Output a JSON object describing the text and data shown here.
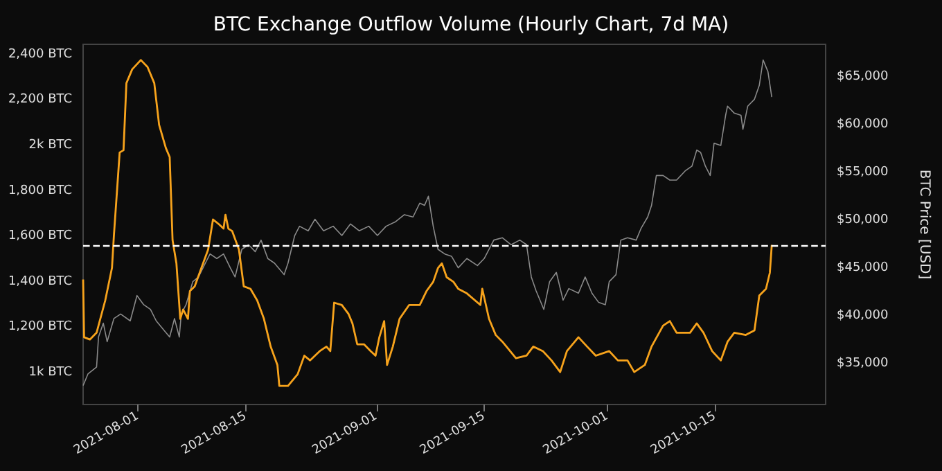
{
  "chart_data": {
    "type": "line",
    "title": "BTC Exchange Outflow Volume (Hourly Chart, 7d MA)",
    "y2label": "BTC Price [USD]",
    "marker": "none",
    "xlim": [
      "2021-07-24T21:00",
      "2021-10-29T09:00"
    ],
    "xticks": [
      {
        "value": "2021-08-01",
        "label": "2021-08-01"
      },
      {
        "value": "2021-08-15",
        "label": "2021-08-15"
      },
      {
        "value": "2021-09-01",
        "label": "2021-09-01"
      },
      {
        "value": "2021-09-15",
        "label": "2021-09-15"
      },
      {
        "value": "2021-10-01",
        "label": "2021-10-01"
      },
      {
        "value": "2021-10-15",
        "label": "2021-10-15"
      }
    ],
    "ylim": [
      860,
      2445
    ],
    "yticks": [
      {
        "value": 1000,
        "label": "1k BTC"
      },
      {
        "value": 1200,
        "label": "1,200 BTC"
      },
      {
        "value": 1400,
        "label": "1,400 BTC"
      },
      {
        "value": 1600,
        "label": "1,600 BTC"
      },
      {
        "value": 1800,
        "label": "1,800 BTC"
      },
      {
        "value": 2000,
        "label": "2k BTC"
      },
      {
        "value": 2200,
        "label": "2,200 BTC"
      },
      {
        "value": 2400,
        "label": "2,400 BTC"
      }
    ],
    "y2lim": [
      30750,
      68430
    ],
    "y2ticks": [
      {
        "value": 35000,
        "label": "$35,000"
      },
      {
        "value": 40000,
        "label": "$40,000"
      },
      {
        "value": 45000,
        "label": "$45,000"
      },
      {
        "value": 50000,
        "label": "$50,000"
      },
      {
        "value": 55000,
        "label": "$55,000"
      },
      {
        "value": 60000,
        "label": "$60,000"
      },
      {
        "value": 65000,
        "label": "$65,000"
      }
    ],
    "ref_lines": [
      {
        "axis": "y",
        "value": 1560,
        "color": "#ffffff",
        "line_style": "dashed"
      }
    ],
    "series": [
      {
        "color": "#8a8a8a",
        "axis": "y2",
        "x": [
          "2021-07-24T21:00",
          "2021-07-25T12:00",
          "2021-07-26T15:00",
          "2021-07-26T21:00",
          "2021-07-27T12:00",
          "2021-07-28T00:00",
          "2021-07-28T21:00",
          "2021-07-29T18:00",
          "2021-07-31T00:00",
          "2021-07-31T21:00",
          "2021-08-01T18:00",
          "2021-08-02T15:00",
          "2021-08-03T09:00",
          "2021-08-04T15:00",
          "2021-08-05T03:00",
          "2021-08-05T18:00",
          "2021-08-06T09:00",
          "2021-08-06T15:00",
          "2021-08-07T06:00",
          "2021-08-08T03:00",
          "2021-08-08T21:00",
          "2021-08-09T18:00",
          "2021-08-10T09:00",
          "2021-08-11T06:00",
          "2021-08-12T03:00",
          "2021-08-13T00:00",
          "2021-08-13T15:00",
          "2021-08-14T12:00",
          "2021-08-15T09:00",
          "2021-08-16T06:00",
          "2021-08-17T00:00",
          "2021-08-17T21:00",
          "2021-08-18T18:00",
          "2021-08-20T00:00",
          "2021-08-20T12:00",
          "2021-08-21T09:00",
          "2021-08-22T00:00",
          "2021-08-23T03:00",
          "2021-08-24T00:00",
          "2021-08-25T03:00",
          "2021-08-26T09:00",
          "2021-08-27T12:00",
          "2021-08-28T15:00",
          "2021-08-29T18:00",
          "2021-08-31T00:00",
          "2021-09-01T03:00",
          "2021-09-02T06:00",
          "2021-09-03T12:00",
          "2021-09-04T15:00",
          "2021-09-05T18:00",
          "2021-09-06T15:00",
          "2021-09-07T06:00",
          "2021-09-07T18:00",
          "2021-09-08T09:00",
          "2021-09-09T00:00",
          "2021-09-09T21:00",
          "2021-09-10T18:00",
          "2021-09-11T15:00",
          "2021-09-12T18:00",
          "2021-09-14T03:00",
          "2021-09-15T00:00",
          "2021-09-16T06:00",
          "2021-09-17T09:00",
          "2021-09-18T12:00",
          "2021-09-19T15:00",
          "2021-09-20T12:00",
          "2021-09-21T03:00",
          "2021-09-21T18:00",
          "2021-09-22T06:00",
          "2021-09-22T18:00",
          "2021-09-23T12:00",
          "2021-09-24T09:00",
          "2021-09-25T06:00",
          "2021-09-26T00:00",
          "2021-09-27T06:00",
          "2021-09-28T03:00",
          "2021-09-29T00:00",
          "2021-09-29T21:00",
          "2021-09-30T18:00",
          "2021-10-01T06:00",
          "2021-10-02T03:00",
          "2021-10-02T18:00",
          "2021-10-03T15:00",
          "2021-10-04T18:00",
          "2021-10-05T09:00",
          "2021-10-06T06:00",
          "2021-10-06T18:00",
          "2021-10-07T09:00",
          "2021-10-08T06:00",
          "2021-10-09T03:00",
          "2021-10-10T00:00",
          "2021-10-11T03:00",
          "2021-10-12T00:00",
          "2021-10-12T15:00",
          "2021-10-13T03:00",
          "2021-10-13T18:00",
          "2021-10-14T09:00",
          "2021-10-14T21:00",
          "2021-10-15T18:00",
          "2021-10-16T09:00",
          "2021-10-16T15:00",
          "2021-10-17T12:00",
          "2021-10-18T09:00",
          "2021-10-18T15:00",
          "2021-10-19T06:00",
          "2021-10-20T03:00",
          "2021-10-20T18:00",
          "2021-10-21T06:00",
          "2021-10-21T21:00",
          "2021-10-22T09:00"
        ],
        "values": [
          32730,
          33940,
          34670,
          37810,
          39260,
          37320,
          39740,
          40220,
          39500,
          42150,
          41190,
          40700,
          39500,
          38290,
          37810,
          39740,
          37810,
          40220,
          41190,
          43600,
          44090,
          45530,
          46500,
          46020,
          46500,
          45050,
          44090,
          46980,
          47470,
          46740,
          47950,
          46020,
          45530,
          44330,
          45530,
          48430,
          49400,
          48920,
          50130,
          48920,
          49400,
          48430,
          49640,
          48920,
          49400,
          48430,
          49400,
          49880,
          50610,
          50370,
          51820,
          51580,
          52540,
          49400,
          46980,
          46500,
          46260,
          45050,
          46020,
          45290,
          46020,
          47950,
          48190,
          47470,
          47950,
          47470,
          44090,
          42630,
          41670,
          40700,
          43600,
          44570,
          41670,
          42880,
          42400,
          44090,
          42400,
          41430,
          41190,
          43600,
          44330,
          47950,
          48190,
          47950,
          49160,
          50370,
          51580,
          54710,
          54710,
          54230,
          54230,
          55190,
          55680,
          57370,
          57130,
          55680,
          54710,
          58090,
          57850,
          61000,
          61960,
          61230,
          61000,
          59540,
          61960,
          62680,
          64130,
          66790,
          65580,
          62920
        ]
      },
      {
        "color": "#f7a31c",
        "x": [
          "2021-07-24T21:00",
          "2021-07-25T00:00",
          "2021-07-25T18:00",
          "2021-07-26T15:00",
          "2021-07-27T18:00",
          "2021-07-28T09:00",
          "2021-07-28T15:00",
          "2021-07-28T21:00",
          "2021-07-29T09:00",
          "2021-07-29T15:00",
          "2021-07-30T03:00",
          "2021-07-30T12:00",
          "2021-07-31T06:00",
          "2021-08-01T09:00",
          "2021-08-02T06:00",
          "2021-08-03T03:00",
          "2021-08-03T18:00",
          "2021-08-04T15:00",
          "2021-08-05T03:00",
          "2021-08-05T12:00",
          "2021-08-06T00:00",
          "2021-08-06T12:00",
          "2021-08-06T21:00",
          "2021-08-07T12:00",
          "2021-08-07T18:00",
          "2021-08-08T09:00",
          "2021-08-09T06:00",
          "2021-08-10T03:00",
          "2021-08-10T18:00",
          "2021-08-11T12:00",
          "2021-08-12T03:00",
          "2021-08-12T09:00",
          "2021-08-12T18:00",
          "2021-08-13T06:00",
          "2021-08-14T03:00",
          "2021-08-14T18:00",
          "2021-08-15T15:00",
          "2021-08-16T12:00",
          "2021-08-17T09:00",
          "2021-08-18T06:00",
          "2021-08-19T03:00",
          "2021-08-19T09:00",
          "2021-08-20T12:00",
          "2021-08-21T18:00",
          "2021-08-22T15:00",
          "2021-08-23T09:00",
          "2021-08-24T15:00",
          "2021-08-25T12:00",
          "2021-08-26T00:00",
          "2021-08-26T12:00",
          "2021-08-27T12:00",
          "2021-08-28T09:00",
          "2021-08-28T21:00",
          "2021-08-29T12:00",
          "2021-08-30T09:00",
          "2021-08-31T06:00",
          "2021-08-31T21:00",
          "2021-09-01T09:00",
          "2021-09-02T00:00",
          "2021-09-02T09:00",
          "2021-09-03T03:00",
          "2021-09-04T00:00",
          "2021-09-05T06:00",
          "2021-09-06T15:00",
          "2021-09-07T12:00",
          "2021-09-08T09:00",
          "2021-09-09T00:00",
          "2021-09-09T12:00",
          "2021-09-10T03:00",
          "2021-09-11T00:00",
          "2021-09-11T15:00",
          "2021-09-12T18:00",
          "2021-09-14T12:00",
          "2021-09-14T18:00",
          "2021-09-15T15:00",
          "2021-09-16T12:00",
          "2021-09-17T09:00",
          "2021-09-19T03:00",
          "2021-09-20T12:00",
          "2021-09-21T09:00",
          "2021-09-22T15:00",
          "2021-09-23T18:00",
          "2021-09-24T21:00",
          "2021-09-25T18:00",
          "2021-09-27T06:00",
          "2021-09-28T09:00",
          "2021-09-29T12:00",
          "2021-10-01T06:00",
          "2021-10-02T09:00",
          "2021-10-03T15:00",
          "2021-10-04T12:00",
          "2021-10-05T21:00",
          "2021-10-06T18:00",
          "2021-10-08T06:00",
          "2021-10-09T03:00",
          "2021-10-10T00:00",
          "2021-10-11T18:00",
          "2021-10-12T15:00",
          "2021-10-13T12:00",
          "2021-10-14T15:00",
          "2021-10-15T18:00",
          "2021-10-16T15:00",
          "2021-10-17T12:00",
          "2021-10-19T00:00",
          "2021-10-20T03:00",
          "2021-10-20T18:00",
          "2021-10-21T15:00",
          "2021-10-22T03:00",
          "2021-10-22T09:00"
        ],
        "values": [
          1410,
          1156,
          1146,
          1176,
          1318,
          1420,
          1461,
          1603,
          1847,
          1969,
          1979,
          2274,
          2335,
          2376,
          2345,
          2274,
          2091,
          1989,
          1949,
          1583,
          1481,
          1237,
          1278,
          1237,
          1359,
          1380,
          1461,
          1542,
          1674,
          1654,
          1634,
          1695,
          1634,
          1623,
          1542,
          1380,
          1369,
          1318,
          1237,
          1115,
          1034,
          942,
          942,
          993,
          1075,
          1054,
          1095,
          1115,
          1095,
          1308,
          1298,
          1258,
          1217,
          1125,
          1125,
          1095,
          1075,
          1156,
          1227,
          1034,
          1115,
          1237,
          1298,
          1298,
          1359,
          1400,
          1461,
          1481,
          1420,
          1400,
          1369,
          1349,
          1298,
          1369,
          1237,
          1166,
          1136,
          1064,
          1075,
          1115,
          1095,
          1054,
          1003,
          1095,
          1156,
          1115,
          1075,
          1095,
          1054,
          1054,
          1003,
          1034,
          1115,
          1207,
          1227,
          1176,
          1176,
          1217,
          1176,
          1095,
          1054,
          1136,
          1176,
          1166,
          1186,
          1339,
          1369,
          1440,
          1562
        ]
      }
    ]
  }
}
